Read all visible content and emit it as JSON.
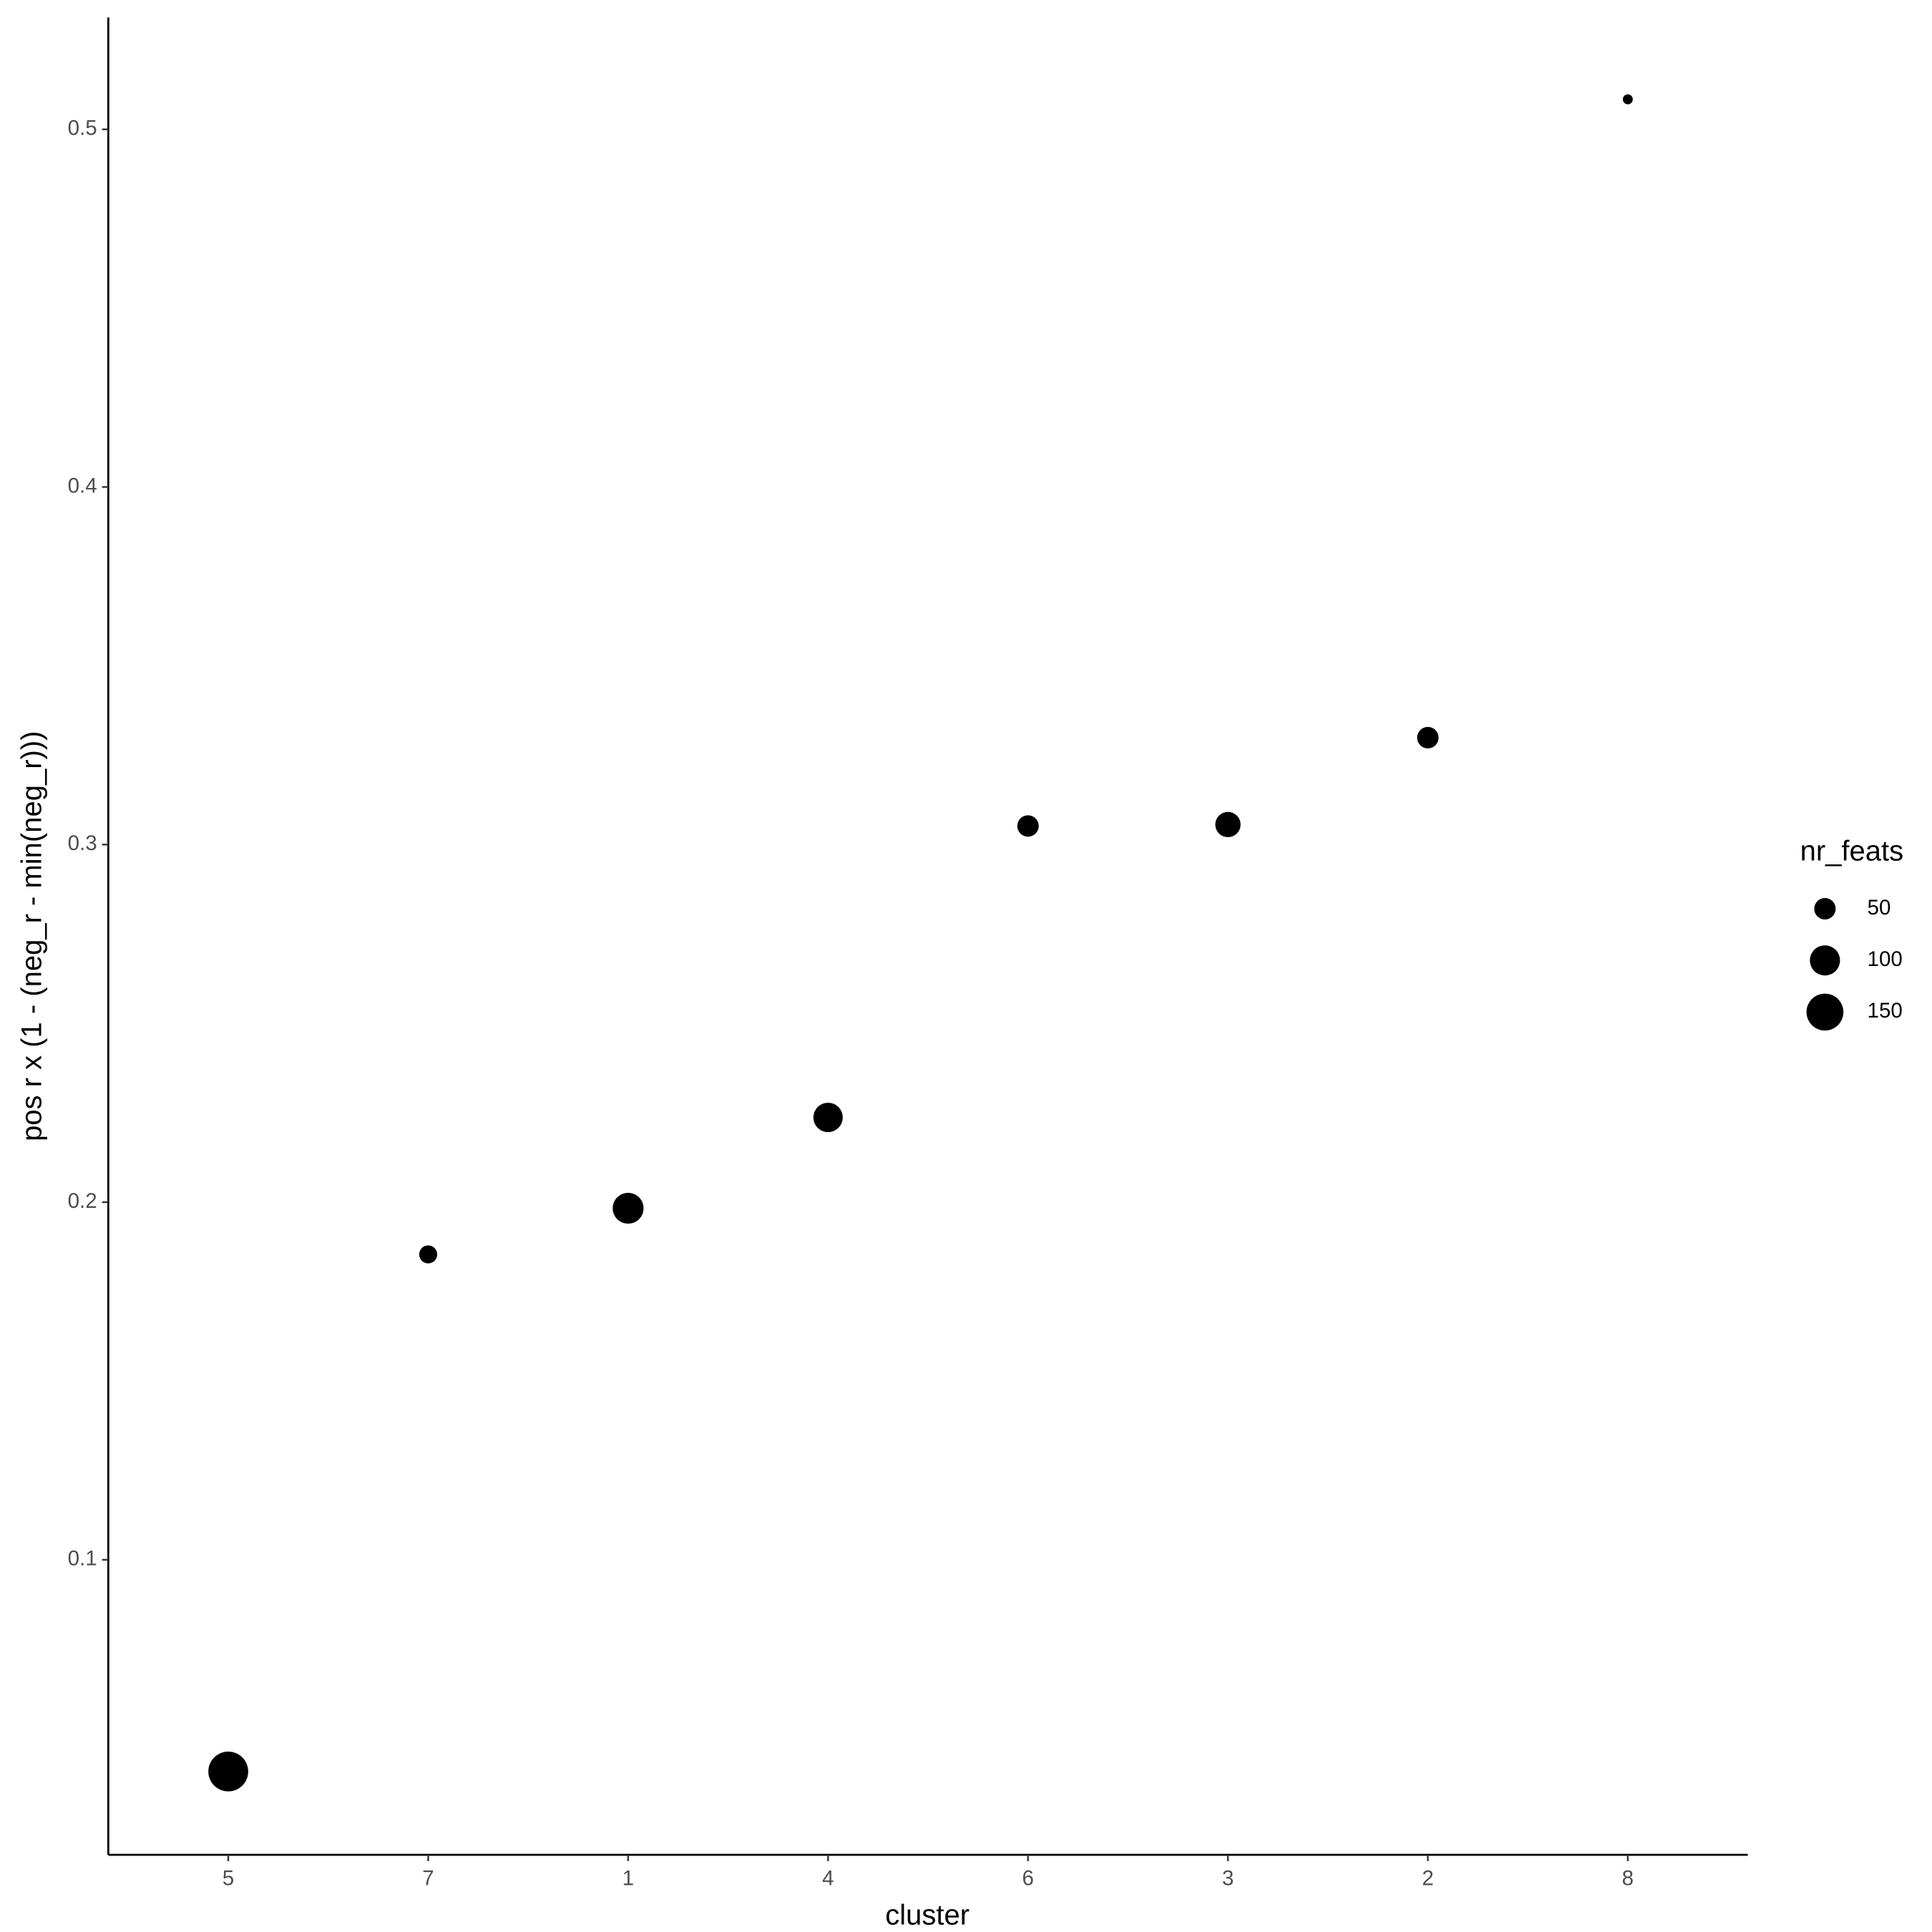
{
  "chart_data": {
    "type": "scatter",
    "x_label": "cluster",
    "y_label": "pos r x (1 - (neg_r - min(neg_r)))",
    "categories": [
      "5",
      "7",
      "1",
      "4",
      "6",
      "3",
      "2",
      "8"
    ],
    "values": [
      0.0408,
      0.1854,
      0.1983,
      0.2237,
      0.3052,
      0.3056,
      0.3299,
      0.5084
    ],
    "sizes": [
      175,
      35,
      105,
      95,
      50,
      70,
      50,
      10
    ],
    "color": "#000000",
    "ylim": [
      0.0175,
      0.5313
    ],
    "yticks": [
      0.1,
      0.2,
      0.3,
      0.4,
      0.5
    ],
    "grid": false,
    "legend": {
      "title": "nr_feats",
      "sizes": [
        50,
        100,
        150
      ]
    }
  }
}
